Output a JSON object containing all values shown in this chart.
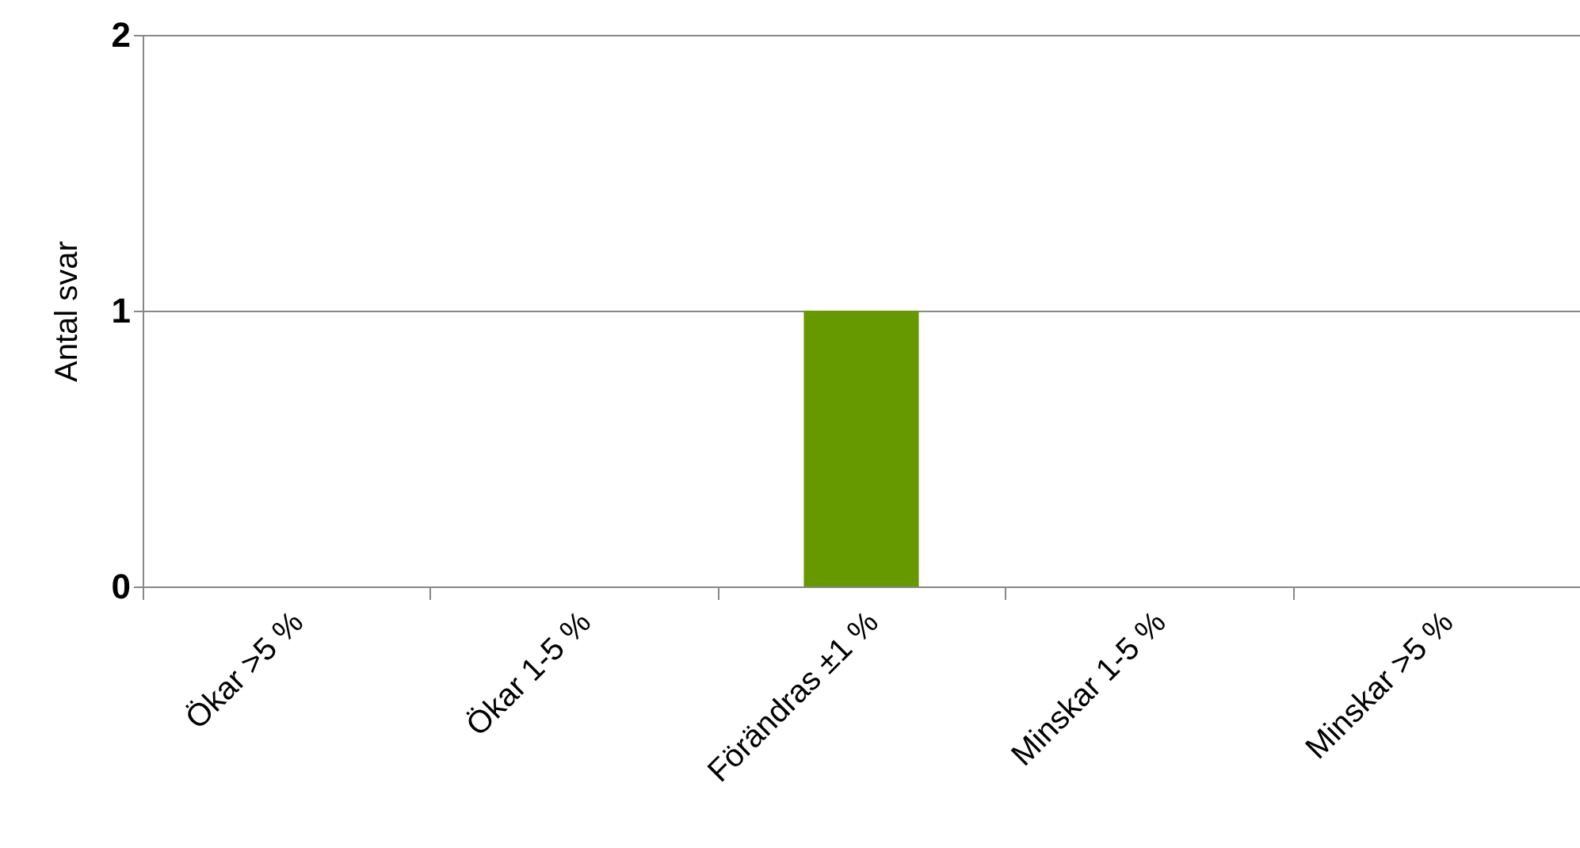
{
  "chart_data": {
    "type": "bar",
    "ylabel": "Antal svar",
    "categories": [
      "Ökar >5 %",
      "Ökar 1-5 %",
      "Förändras ±1 %",
      "Minskar 1-5 %",
      "Minskar >5 %"
    ],
    "values": [
      0,
      0,
      1,
      0,
      0
    ],
    "color": "#669900",
    "ylim": [
      0,
      2
    ],
    "yticks": [
      0,
      1,
      2
    ],
    "grid": "y"
  }
}
